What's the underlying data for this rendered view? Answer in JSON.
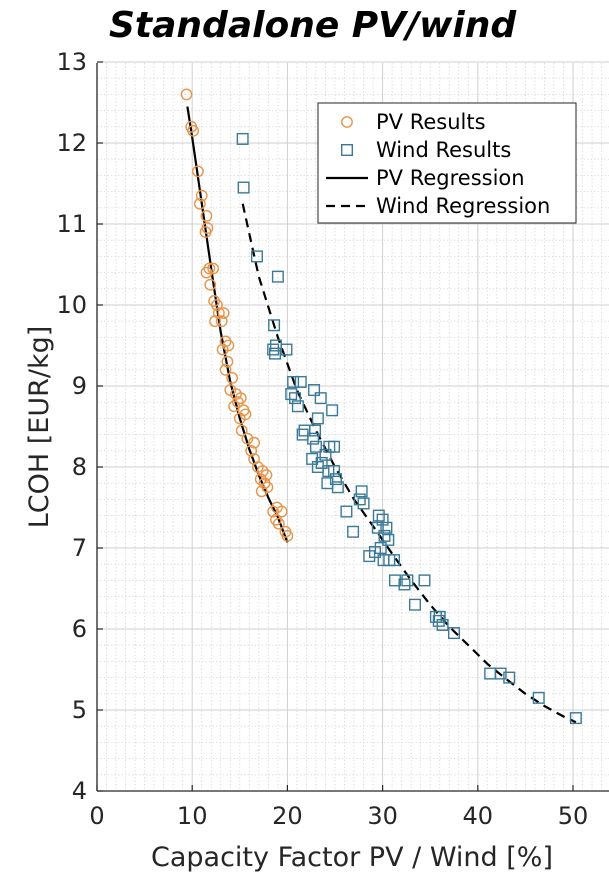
{
  "chart_data": {
    "type": "scatter",
    "title": "Standalone PV/wind",
    "xlabel": "Capacity Factor PV / Wind [%]",
    "ylabel": "LCOH [EUR/kg]",
    "xlim": [
      0,
      55
    ],
    "ylim": [
      4,
      13
    ],
    "xticks": [
      0,
      10,
      20,
      30,
      40,
      50
    ],
    "yticks": [
      4,
      5,
      6,
      7,
      8,
      9,
      10,
      11,
      12,
      13
    ],
    "grid": true,
    "legend_position": "top-right",
    "series": [
      {
        "name": "PV Results",
        "kind": "scatter",
        "marker": "circle",
        "color": "#e8954a",
        "points": [
          [
            9.4,
            12.6
          ],
          [
            9.9,
            12.2
          ],
          [
            10.1,
            12.15
          ],
          [
            10.6,
            11.65
          ],
          [
            11.0,
            11.35
          ],
          [
            10.8,
            11.25
          ],
          [
            11.5,
            11.1
          ],
          [
            11.6,
            10.95
          ],
          [
            11.4,
            10.9
          ],
          [
            11.8,
            10.45
          ],
          [
            11.5,
            10.4
          ],
          [
            12.2,
            10.45
          ],
          [
            11.9,
            10.25
          ],
          [
            12.3,
            10.05
          ],
          [
            12.6,
            10.0
          ],
          [
            12.8,
            9.9
          ],
          [
            12.4,
            9.8
          ],
          [
            13.1,
            9.8
          ],
          [
            13.3,
            9.9
          ],
          [
            13.5,
            9.55
          ],
          [
            13.8,
            9.5
          ],
          [
            13.2,
            9.45
          ],
          [
            13.7,
            9.3
          ],
          [
            13.5,
            9.2
          ],
          [
            14.2,
            9.1
          ],
          [
            14.0,
            8.95
          ],
          [
            14.6,
            8.9
          ],
          [
            14.8,
            8.8
          ],
          [
            15.1,
            8.85
          ],
          [
            14.4,
            8.75
          ],
          [
            15.4,
            8.7
          ],
          [
            15.0,
            8.6
          ],
          [
            15.6,
            8.65
          ],
          [
            15.2,
            8.45
          ],
          [
            15.8,
            8.35
          ],
          [
            16.5,
            8.3
          ],
          [
            16.2,
            8.2
          ],
          [
            16.5,
            8.1
          ],
          [
            16.9,
            8.0
          ],
          [
            17.4,
            7.95
          ],
          [
            17.8,
            7.9
          ],
          [
            17.2,
            7.85
          ],
          [
            17.6,
            7.8
          ],
          [
            17.9,
            7.75
          ],
          [
            17.3,
            7.7
          ],
          [
            18.9,
            7.5
          ],
          [
            19.4,
            7.45
          ],
          [
            18.5,
            7.45
          ],
          [
            18.8,
            7.35
          ],
          [
            19.1,
            7.3
          ],
          [
            19.8,
            7.2
          ],
          [
            20.0,
            7.15
          ]
        ]
      },
      {
        "name": "Wind Results",
        "kind": "scatter",
        "marker": "square",
        "color": "#3a7a97",
        "points": [
          [
            15.3,
            12.05
          ],
          [
            15.4,
            11.45
          ],
          [
            16.8,
            10.6
          ],
          [
            19.0,
            10.35
          ],
          [
            18.6,
            9.75
          ],
          [
            18.8,
            9.5
          ],
          [
            18.5,
            9.45
          ],
          [
            18.7,
            9.4
          ],
          [
            19.9,
            9.45
          ],
          [
            20.6,
            9.05
          ],
          [
            21.4,
            9.05
          ],
          [
            20.4,
            8.9
          ],
          [
            20.8,
            8.85
          ],
          [
            21.1,
            8.75
          ],
          [
            22.8,
            8.95
          ],
          [
            23.5,
            8.85
          ],
          [
            24.7,
            8.7
          ],
          [
            23.2,
            8.6
          ],
          [
            22.9,
            8.45
          ],
          [
            21.6,
            8.4
          ],
          [
            21.8,
            8.45
          ],
          [
            22.7,
            8.35
          ],
          [
            23.0,
            8.25
          ],
          [
            24.4,
            8.25
          ],
          [
            24.9,
            8.25
          ],
          [
            24.0,
            8.15
          ],
          [
            22.6,
            8.1
          ],
          [
            23.6,
            8.05
          ],
          [
            23.2,
            8.0
          ],
          [
            24.3,
            7.95
          ],
          [
            24.9,
            7.95
          ],
          [
            25.1,
            7.85
          ],
          [
            24.2,
            7.8
          ],
          [
            25.3,
            7.75
          ],
          [
            26.2,
            7.45
          ],
          [
            26.9,
            7.2
          ],
          [
            27.8,
            7.7
          ],
          [
            27.6,
            7.6
          ],
          [
            28.0,
            7.55
          ],
          [
            29.6,
            7.4
          ],
          [
            30.0,
            7.35
          ],
          [
            30.4,
            7.25
          ],
          [
            29.5,
            7.25
          ],
          [
            30.2,
            7.15
          ],
          [
            30.6,
            7.1
          ],
          [
            29.8,
            7.0
          ],
          [
            29.2,
            6.95
          ],
          [
            28.6,
            6.9
          ],
          [
            30.1,
            6.85
          ],
          [
            30.7,
            6.85
          ],
          [
            31.2,
            6.85
          ],
          [
            31.3,
            6.6
          ],
          [
            32.3,
            6.55
          ],
          [
            32.6,
            6.6
          ],
          [
            33.4,
            6.3
          ],
          [
            34.4,
            6.6
          ],
          [
            35.6,
            6.15
          ],
          [
            36.0,
            6.15
          ],
          [
            35.9,
            6.1
          ],
          [
            36.3,
            6.05
          ],
          [
            37.5,
            5.95
          ],
          [
            41.3,
            5.45
          ],
          [
            42.4,
            5.45
          ],
          [
            43.3,
            5.4
          ],
          [
            46.4,
            5.15
          ],
          [
            50.3,
            4.9
          ]
        ]
      },
      {
        "name": "PV Regression",
        "kind": "line",
        "style": "solid",
        "color": "#000000",
        "points": [
          [
            9.5,
            12.45
          ],
          [
            10.0,
            12.07
          ],
          [
            11.0,
            11.26
          ],
          [
            12.0,
            10.45
          ],
          [
            13.0,
            9.66
          ],
          [
            14.0,
            9.05
          ],
          [
            15.0,
            8.6
          ],
          [
            16.0,
            8.22
          ],
          [
            17.0,
            7.9
          ],
          [
            18.0,
            7.62
          ],
          [
            19.0,
            7.38
          ],
          [
            20.0,
            7.07
          ]
        ]
      },
      {
        "name": "Wind Regression",
        "kind": "line",
        "style": "dashed",
        "color": "#000000",
        "points": [
          [
            15.3,
            11.25
          ],
          [
            17.0,
            10.35
          ],
          [
            19.0,
            9.6
          ],
          [
            21.0,
            8.95
          ],
          [
            23.0,
            8.45
          ],
          [
            25.0,
            8.0
          ],
          [
            27.0,
            7.6
          ],
          [
            29.0,
            7.27
          ],
          [
            31.0,
            6.93
          ],
          [
            33.0,
            6.6
          ],
          [
            35.0,
            6.3
          ],
          [
            37.0,
            6.03
          ],
          [
            39.0,
            5.8
          ],
          [
            41.0,
            5.57
          ],
          [
            43.0,
            5.38
          ],
          [
            45.0,
            5.2
          ],
          [
            47.0,
            5.05
          ],
          [
            49.0,
            4.92
          ],
          [
            50.3,
            4.85
          ]
        ]
      }
    ]
  }
}
